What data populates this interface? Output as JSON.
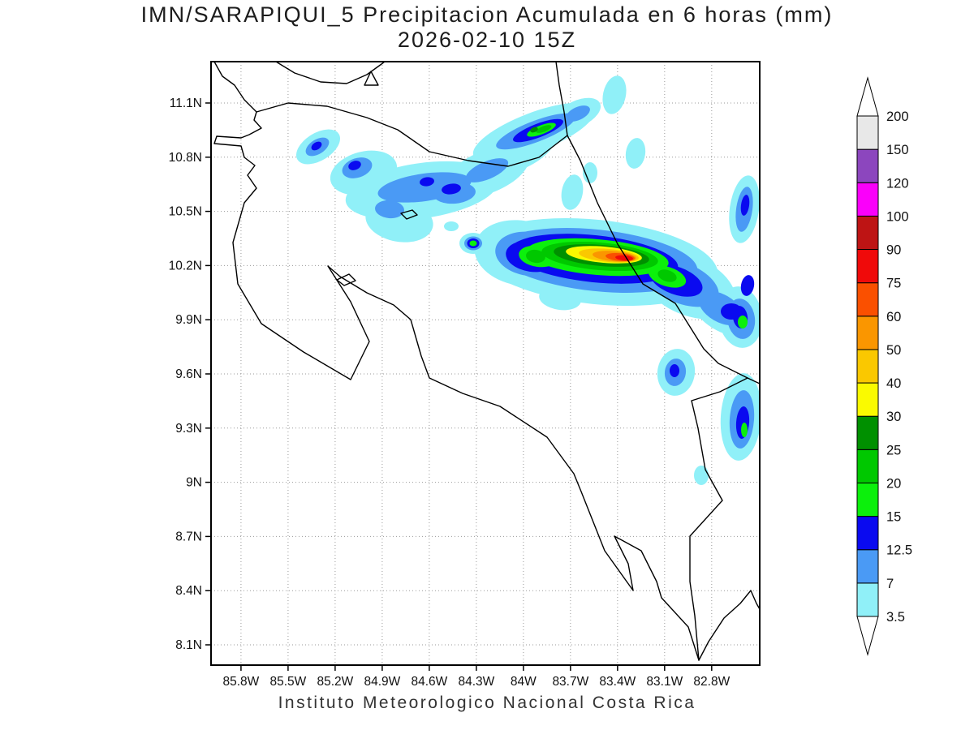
{
  "header": {
    "title_line1": "IMN/SARAPIQUI_5 Precipitacion Acumulada en 6 horas (mm)",
    "title_line2": "2026-02-10 15Z"
  },
  "footer": {
    "credit": "Instituto Meteorologico Nacional Costa Rica"
  },
  "axes": {
    "lat_labels": [
      "11.1N",
      "10.8N",
      "10.5N",
      "10.2N",
      "9.9N",
      "9.6N",
      "9.3N",
      "9N",
      "8.7N",
      "8.4N",
      "8.1N"
    ],
    "lat_values": [
      11.1,
      10.8,
      10.5,
      10.2,
      9.9,
      9.6,
      9.3,
      9.0,
      8.7,
      8.4,
      8.1
    ],
    "lon_labels": [
      "85.8W",
      "85.5W",
      "85.2W",
      "84.9W",
      "84.6W",
      "84.3W",
      "84W",
      "83.7W",
      "83.4W",
      "83.1W",
      "82.8W"
    ],
    "lon_values": [
      85.8,
      85.5,
      85.2,
      84.9,
      84.6,
      84.3,
      84.0,
      83.7,
      83.4,
      83.1,
      82.8
    ]
  },
  "colorbar": {
    "levels": [
      "3.5",
      "7",
      "12.5",
      "15",
      "20",
      "25",
      "30",
      "40",
      "50",
      "60",
      "75",
      "90",
      "100",
      "120",
      "150",
      "200"
    ],
    "segment_colors": [
      "#90F0F8",
      "#4A9AF5",
      "#0A0AF0",
      "#0CF00C",
      "#00C800",
      "#009000",
      "#FAFA00",
      "#FAC800",
      "#FA9600",
      "#FA5000",
      "#F00A0A",
      "#BE1414",
      "#FA00FA",
      "#8C46BE",
      "#E8E8E8"
    ],
    "cap_color": "#FFFFFF"
  },
  "chart_data": {
    "type": "heatmap",
    "units": "mm",
    "title": "IMN/SARAPIQUI_5 Precipitacion Acumulada en 6 horas (mm)",
    "subtitle": "2026-02-10 15Z",
    "x_ticks": [
      "85.8W",
      "85.5W",
      "85.2W",
      "84.9W",
      "84.6W",
      "84.3W",
      "84W",
      "83.7W",
      "83.4W",
      "83.1W",
      "82.8W"
    ],
    "y_ticks": [
      "11.1N",
      "10.8N",
      "10.5N",
      "10.2N",
      "9.9N",
      "9.6N",
      "9.3N",
      "9N",
      "8.7N",
      "8.4N",
      "8.1N"
    ],
    "grid": true,
    "legend_position": "right",
    "legend_levels_mm": [
      3.5,
      7,
      12.5,
      15,
      20,
      25,
      30,
      40,
      50,
      60,
      75,
      90,
      100,
      120,
      150,
      200
    ],
    "peak": {
      "value_mm": "75-90",
      "approx_lat": "10.2N",
      "approx_lon": "83.4W"
    },
    "cells_note": "each cell: [level_mm, cx_px, cy_px, rx_px, ry_px, rotation_deg] in page coordinates",
    "cells": [
      [
        3.5,
        392,
        181,
        30,
        17,
        -32
      ],
      [
        3.5,
        448,
        213,
        42,
        26,
        -15
      ],
      [
        3.5,
        520,
        235,
        95,
        34,
        -8
      ],
      [
        3.5,
        492,
        272,
        42,
        26,
        10
      ],
      [
        3.5,
        600,
        212,
        55,
        26,
        -22
      ],
      [
        3.5,
        646,
        183,
        45,
        22,
        -30
      ],
      [
        3.5,
        658,
        163,
        80,
        24,
        -21
      ],
      [
        3.5,
        712,
        140,
        30,
        16,
        -25
      ],
      [
        3.5,
        757,
        117,
        14,
        24,
        12
      ],
      [
        3.5,
        783,
        189,
        12,
        19,
        8
      ],
      [
        3.5,
        705,
        237,
        13,
        22,
        10
      ],
      [
        3.5,
        727,
        213,
        9,
        13,
        0
      ],
      [
        3.5,
        474,
        263,
        9,
        7,
        0
      ],
      [
        3.5,
        556,
        279,
        9,
        6,
        0
      ],
      [
        3.5,
        583,
        300,
        17,
        13,
        0
      ],
      [
        3.5,
        735,
        323,
        150,
        52,
        6
      ],
      [
        3.5,
        642,
        312,
        58,
        40,
        10
      ],
      [
        3.5,
        690,
        368,
        26,
        14,
        8
      ],
      [
        3.5,
        848,
        352,
        62,
        36,
        24
      ],
      [
        3.5,
        893,
        382,
        45,
        27,
        30
      ],
      [
        3.5,
        917,
        258,
        18,
        42,
        8
      ],
      [
        3.5,
        912,
        391,
        27,
        38,
        -8
      ],
      [
        3.5,
        833,
        459,
        23,
        29,
        8
      ],
      [
        3.5,
        913,
        514,
        25,
        54,
        4
      ],
      [
        3.5,
        864,
        586,
        9,
        12,
        0
      ],
      [
        7,
        391,
        181,
        16,
        9,
        -32
      ],
      [
        7,
        440,
        207,
        19,
        12,
        -18
      ],
      [
        7,
        523,
        231,
        58,
        17,
        -8
      ],
      [
        7,
        560,
        238,
        26,
        13,
        -5
      ],
      [
        7,
        480,
        258,
        18,
        11,
        5
      ],
      [
        7,
        600,
        210,
        28,
        11,
        -23
      ],
      [
        7,
        660,
        162,
        52,
        13,
        -21
      ],
      [
        7,
        712,
        140,
        16,
        8,
        -25
      ],
      [
        7,
        583,
        300,
        11,
        8.5,
        0
      ],
      [
        7,
        735,
        321,
        125,
        38,
        6
      ],
      [
        7,
        652,
        313,
        42,
        27,
        8
      ],
      [
        7,
        840,
        349,
        48,
        25,
        22
      ],
      [
        7,
        888,
        380,
        30,
        17,
        30
      ],
      [
        7,
        917,
        258,
        10,
        28,
        8
      ],
      [
        7,
        913,
        393,
        17,
        25,
        -8
      ],
      [
        7,
        832,
        459,
        13,
        17,
        8
      ],
      [
        7,
        914,
        517,
        15,
        36,
        4
      ],
      [
        12.5,
        390,
        180,
        7,
        4.5,
        -32
      ],
      [
        12.5,
        437,
        204,
        8,
        5.5,
        -20
      ],
      [
        12.5,
        526,
        224,
        9,
        5.5,
        -8
      ],
      [
        12.5,
        556,
        233,
        12,
        6.5,
        -8
      ],
      [
        12.5,
        663,
        161,
        33,
        8.5,
        -21
      ],
      [
        12.5,
        583,
        300,
        7.5,
        6,
        0
      ],
      [
        12.5,
        732,
        319,
        104,
        29,
        6
      ],
      [
        12.5,
        655,
        316,
        32,
        19,
        8
      ],
      [
        12.5,
        833,
        346,
        34,
        17,
        20
      ],
      [
        12.5,
        901,
        384,
        13,
        10,
        0
      ],
      [
        12.5,
        921,
        352,
        8,
        13,
        10
      ],
      [
        12.5,
        918,
        253,
        5,
        13,
        8
      ],
      [
        12.5,
        912,
        391,
        9,
        14,
        -8
      ],
      [
        12.5,
        831,
        457,
        6,
        8,
        0
      ],
      [
        12.5,
        915,
        521,
        8,
        20,
        4
      ],
      [
        15,
        736,
        317,
        88,
        22,
        5
      ],
      [
        15,
        663,
        316,
        24,
        13,
        8
      ],
      [
        15,
        822,
        341,
        24,
        12,
        18
      ],
      [
        15,
        667,
        160,
        19,
        5.5,
        -21
      ],
      [
        15,
        583,
        300,
        4.5,
        3.5,
        0
      ],
      [
        15,
        915,
        397,
        6,
        8,
        0
      ],
      [
        15,
        917,
        530,
        4,
        9,
        0
      ],
      [
        20,
        739,
        316,
        72,
        17,
        5
      ],
      [
        20,
        660,
        316,
        12,
        8,
        8
      ],
      [
        20,
        822,
        340,
        12,
        7,
        18
      ],
      [
        20,
        670,
        159,
        10,
        3.5,
        -21
      ],
      [
        25,
        741,
        315,
        59,
        13,
        5
      ],
      [
        25,
        658,
        160,
        5,
        3,
        -21
      ],
      [
        30,
        744,
        314,
        47,
        10,
        5
      ],
      [
        40,
        750,
        315,
        37,
        8,
        5
      ],
      [
        50,
        757,
        316,
        27,
        6.3,
        5
      ],
      [
        60,
        764,
        317,
        18,
        4.8,
        5
      ],
      [
        75,
        769,
        318,
        11,
        3.2,
        5
      ]
    ]
  }
}
